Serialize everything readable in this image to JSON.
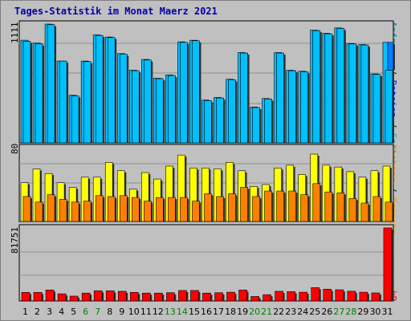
{
  "title": "Tages-Statistik im Monat Maerz 2021",
  "panels": {
    "top": {
      "ymax_label": "1111",
      "legend": [
        "Anfragen",
        "Dateien",
        "Seiten"
      ],
      "legend_sep": " / "
    },
    "middle": {
      "ymax_label": "80",
      "legend": [
        "Besuche",
        "Rechner"
      ],
      "legend_sep": " / "
    },
    "bottom": {
      "ymax_label": "81751",
      "legend": [
        "kB"
      ]
    }
  },
  "colors": {
    "background": "#c0c0c0",
    "title": "#0000a8",
    "anfragen": "#00c0ff",
    "dateien": "#00c0ff",
    "seiten": "#0080ff",
    "besuche": "#ffff00",
    "rechner": "#ff8000",
    "kb": "#ff0000",
    "weekend": "#008000",
    "legend_anfragen": "#008080",
    "legend_dateien": "#0000ff",
    "legend_seiten": "#00a0a0",
    "legend_besuche": "#e0a000",
    "legend_rechner": "#ff8000",
    "legend_kb": "#ff0000"
  },
  "chart_data": {
    "type": "bar",
    "categories": [
      "1",
      "2",
      "3",
      "4",
      "5",
      "6",
      "7",
      "8",
      "9",
      "10",
      "11",
      "12",
      "13",
      "14",
      "15",
      "16",
      "17",
      "18",
      "19",
      "20",
      "21",
      "22",
      "23",
      "24",
      "25",
      "26",
      "27",
      "28",
      "29",
      "30",
      "31"
    ],
    "weekend_days": [
      "6",
      "7",
      "13",
      "14",
      "20",
      "21",
      "27",
      "28"
    ],
    "panels": [
      {
        "name": "top",
        "ylim": [
          0,
          1111
        ],
        "series": [
          {
            "name": "Anfragen",
            "values": [
              960,
              935,
              1111,
              765,
              445,
              765,
              1010,
              990,
              835,
              680,
              780,
              605,
              635,
              945,
              960,
              400,
              425,
              595,
              845,
              335,
              415,
              845,
              680,
              670,
              1055,
              1025,
              1075,
              930,
              920,
              645,
              940
            ]
          },
          {
            "name": "Dateien",
            "values": [
              950,
              925,
              1105,
              765,
              440,
              760,
              1005,
              985,
              830,
              675,
              775,
              600,
              630,
              940,
              955,
              395,
              420,
              590,
              840,
              330,
              410,
              840,
              675,
              665,
              1050,
              1020,
              1070,
              925,
              915,
              640,
              680
            ]
          },
          {
            "name": "Seiten",
            "values": [
              0,
              0,
              0,
              0,
              0,
              0,
              0,
              0,
              0,
              0,
              0,
              0,
              0,
              0,
              0,
              0,
              0,
              0,
              0,
              0,
              0,
              0,
              0,
              0,
              0,
              0,
              0,
              0,
              0,
              0,
              940
            ]
          }
        ]
      },
      {
        "name": "middle",
        "ylim": [
          0,
          80
        ],
        "series": [
          {
            "name": "Besuche",
            "values": [
              42,
              57,
              52,
              42,
              37,
              48,
              48,
              64,
              55,
              35,
              53,
              46,
              60,
              72,
              58,
              58,
              57,
              64,
              55,
              38,
              40,
              58,
              61,
              51,
              73,
              61,
              59,
              54,
              48,
              55,
              60
            ]
          },
          {
            "name": "Rechner",
            "values": [
              27,
              21,
              29,
              24,
              21,
              22,
              28,
              27,
              28,
              26,
              22,
              26,
              26,
              26,
              22,
              30,
              27,
              30,
              37,
              27,
              33,
              33,
              33,
              29,
              41,
              32,
              31,
              25,
              20,
              27,
              21
            ]
          }
        ]
      },
      {
        "name": "bottom",
        "ylim": [
          0,
          81751
        ],
        "series": [
          {
            "name": "kB",
            "values": [
              9600,
              9600,
              12200,
              8000,
              5400,
              8800,
              11400,
              11400,
              10800,
              9600,
              8800,
              8800,
              9200,
              11700,
              11700,
              8800,
              9200,
              9800,
              12200,
              5000,
              7000,
              10800,
              10400,
              9800,
              14900,
              13100,
              12500,
              10900,
              9800,
              9000,
              81751
            ]
          }
        ]
      }
    ]
  }
}
